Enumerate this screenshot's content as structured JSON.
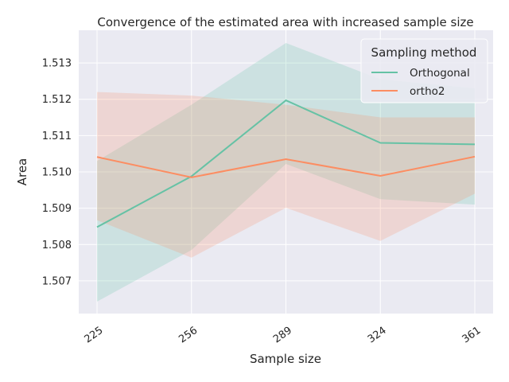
{
  "chart_data": {
    "type": "line",
    "title": "Convergence of the estimated area with increased sample size",
    "xlabel": "Sample size",
    "ylabel": "Area",
    "categories": [
      "225",
      "256",
      "289",
      "324",
      "361"
    ],
    "ylim": [
      1.5061,
      1.5139
    ],
    "yticks": [
      "1.507",
      "1.508",
      "1.509",
      "1.510",
      "1.511",
      "1.512",
      "1.513"
    ],
    "grid": true,
    "legend": {
      "title": "Sampling method",
      "placement": "top-right"
    },
    "series": [
      {
        "name": "Orthogonal",
        "color": "#66c2a5",
        "values": [
          1.50848,
          1.50988,
          1.51197,
          1.5108,
          1.51076
        ],
        "ci_low": [
          1.50643,
          1.50785,
          1.51022,
          1.50925,
          1.5091
        ],
        "ci_high": [
          1.5103,
          1.51185,
          1.51355,
          1.51255,
          1.5123
        ]
      },
      {
        "name": "ortho2",
        "color": "#fc8d62",
        "values": [
          1.51041,
          1.50985,
          1.51035,
          1.50989,
          1.51042
        ],
        "ci_low": [
          1.50867,
          1.50764,
          1.50901,
          1.5081,
          1.5094
        ],
        "ci_high": [
          1.5122,
          1.5121,
          1.51185,
          1.5115,
          1.5115
        ]
      }
    ]
  }
}
